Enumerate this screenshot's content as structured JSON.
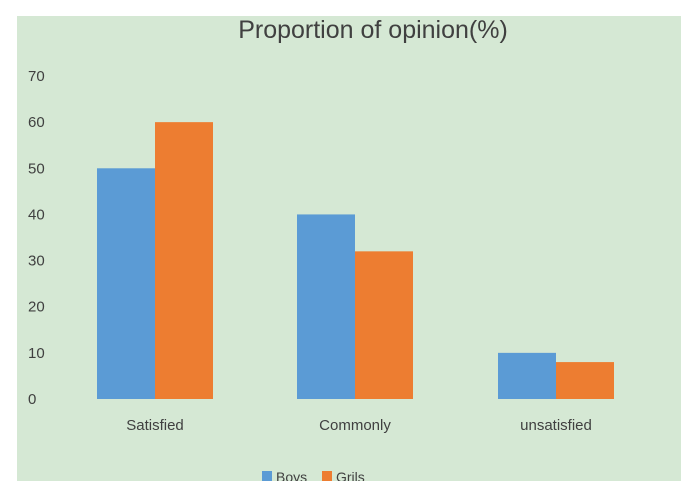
{
  "chart_data": {
    "type": "bar",
    "title": "Proportion of opinion(%)",
    "xlabel": "",
    "ylabel": "",
    "categories": [
      "Satisfied",
      "Commonly",
      "unsatisfied"
    ],
    "series": [
      {
        "name": "Boys",
        "values": [
          50,
          40,
          10
        ],
        "color": "#5b9bd5"
      },
      {
        "name": "Grils",
        "values": [
          60,
          32,
          8
        ],
        "color": "#ed7d31"
      }
    ],
    "ylim": [
      0,
      70
    ],
    "yticks": [
      0,
      10,
      20,
      30,
      40,
      50,
      60,
      70
    ],
    "grid": false,
    "legend_position": "bottom",
    "background_color": "#d5e8d4"
  }
}
